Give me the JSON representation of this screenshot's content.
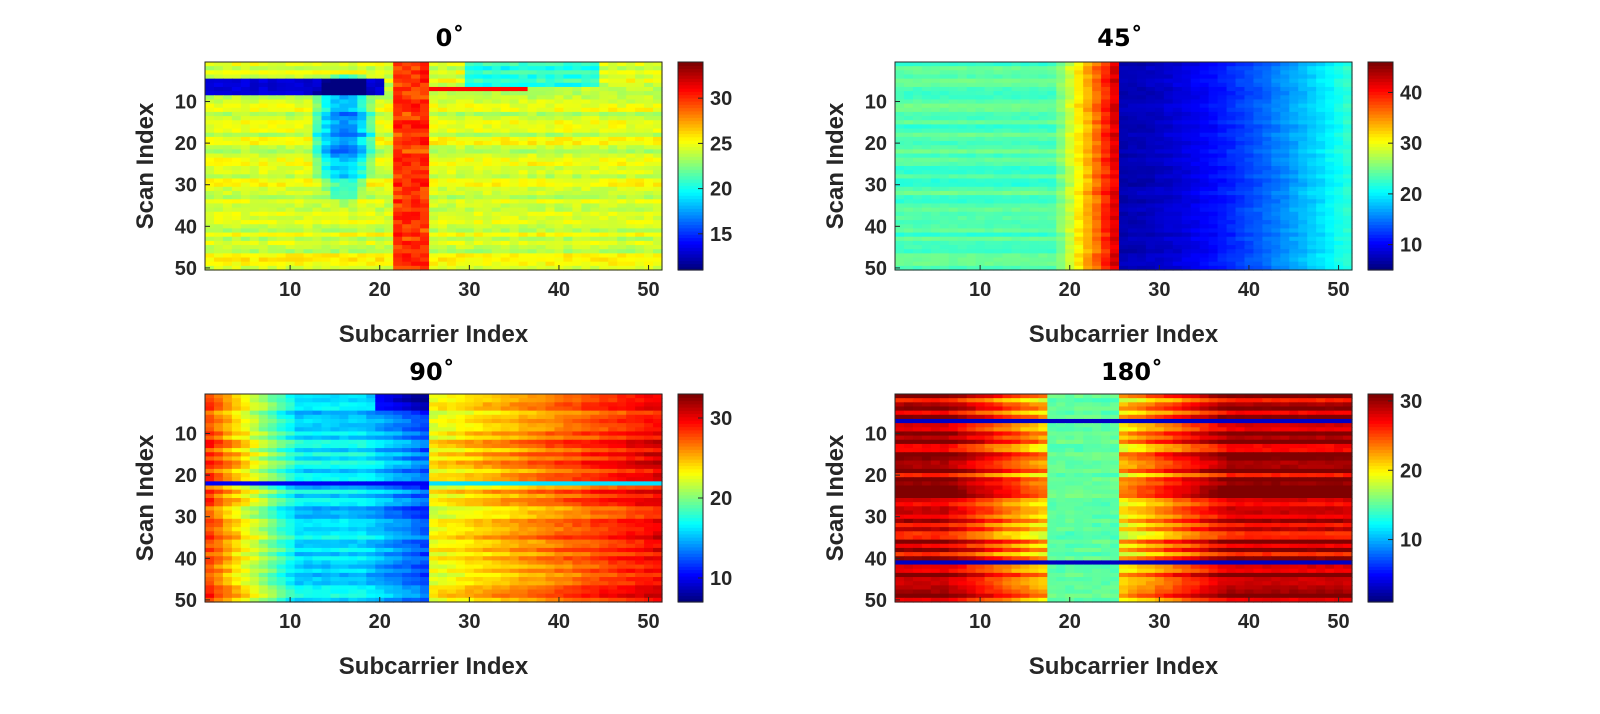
{
  "chart_data": [
    {
      "type": "heatmap",
      "title": "0˚",
      "xlabel": "Subcarrier Index",
      "ylabel": "Scan Index",
      "x_range": [
        1,
        51
      ],
      "y_range": [
        1,
        50
      ],
      "x_ticks": [
        10,
        20,
        30,
        40,
        50
      ],
      "y_ticks": [
        10,
        20,
        30,
        40,
        50
      ],
      "colorbar": {
        "range": [
          11,
          34
        ],
        "ticks": [
          15,
          20,
          25,
          30
        ]
      },
      "pattern": "mostly 22-27 background; dark blue horizontal band near scans 5-8 on the left; blue patch around subcarriers 13-19 for scans 5-35; red vertical column at subcarriers 22-25"
    },
    {
      "type": "heatmap",
      "title": "45˚",
      "xlabel": "Subcarrier Index",
      "ylabel": "Scan Index",
      "x_range": [
        1,
        51
      ],
      "y_range": [
        1,
        50
      ],
      "x_ticks": [
        10,
        20,
        30,
        40,
        50
      ],
      "y_ticks": [
        10,
        20,
        30,
        40,
        50
      ],
      "colorbar": {
        "range": [
          5,
          46
        ],
        "ticks": [
          10,
          20,
          30,
          40
        ]
      },
      "pattern": "green-cyan 22-26 on the left, rising to red ~42 at subcarriers 19-25, sharp drop to dark blue ~8 at subcarrier 26, gradually rising to cyan ~20 at subcarrier 51"
    },
    {
      "type": "heatmap",
      "title": "90˚",
      "xlabel": "Subcarrier Index",
      "ylabel": "Scan Index",
      "x_range": [
        1,
        51
      ],
      "y_range": [
        1,
        50
      ],
      "x_ticks": [
        10,
        20,
        30,
        40,
        50
      ],
      "y_ticks": [
        10,
        20,
        30,
        40,
        50
      ],
      "colorbar": {
        "range": [
          7,
          33
        ],
        "ticks": [
          10,
          20,
          30
        ]
      },
      "pattern": "red-orange ~28 at subcarriers 1-6, blue-cyan ~15 across subcarriers 10-25, yellow-orange rising to ~31 at subcarriers 26-51; blue horizontal line at scan 22"
    },
    {
      "type": "heatmap",
      "title": "180˚",
      "xlabel": "Subcarrier Index",
      "ylabel": "Scan Index",
      "x_range": [
        1,
        51
      ],
      "y_range": [
        1,
        50
      ],
      "x_ticks": [
        10,
        20,
        30,
        40,
        50
      ],
      "y_ticks": [
        10,
        20,
        30,
        40,
        50
      ],
      "colorbar": {
        "range": [
          1,
          31
        ],
        "ticks": [
          10,
          20,
          30
        ]
      },
      "pattern": "horizontal red-orange stripes ~26-30 at both edges, cyan-green ~16 centre around subcarriers 18-25; dark blue horizontal lines at scans 7 and 41"
    }
  ]
}
